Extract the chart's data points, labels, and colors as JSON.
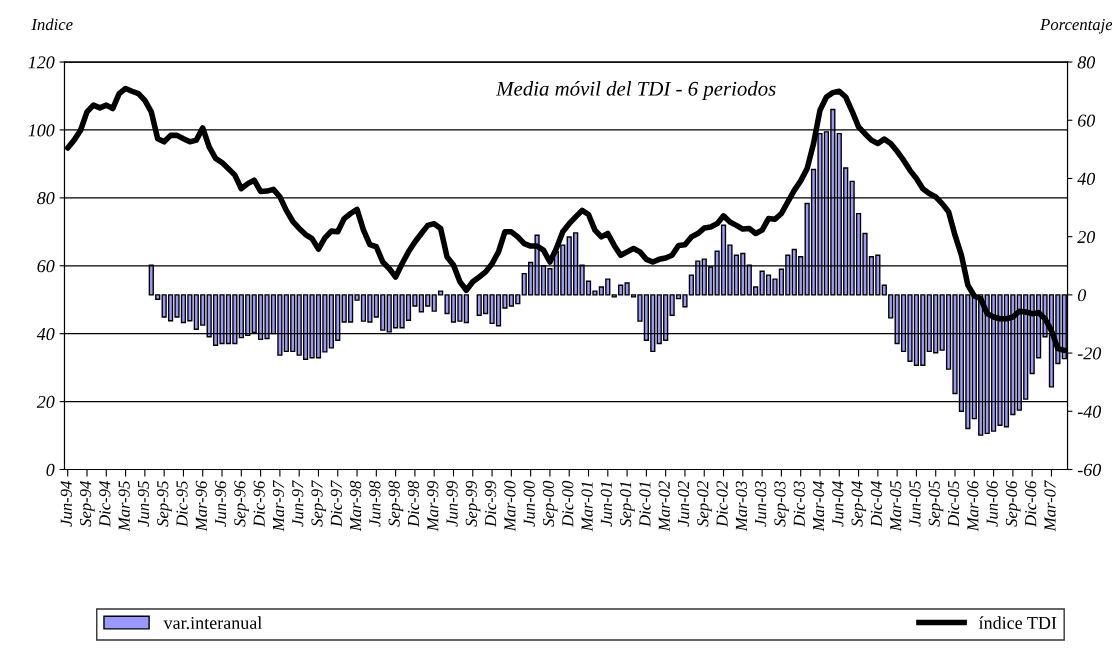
{
  "chart_data": {
    "type": "bar",
    "ylabel": "Indice",
    "y2label": "Porcentaje",
    "annotations": [
      "Media móvil del TDI - 6 periodos"
    ],
    "categories": [
      "Jun-94",
      null,
      null,
      "Sep-94",
      null,
      null,
      "Dic-94",
      null,
      null,
      "Mar-95",
      null,
      null,
      "Jun-95",
      null,
      null,
      "Sep-95",
      null,
      null,
      "Dic-95",
      null,
      null,
      "Mar-96",
      null,
      null,
      "Jun-96",
      null,
      null,
      "Sep-96",
      null,
      null,
      "Dic-96",
      null,
      null,
      "Mar-97",
      null,
      null,
      "Jun-97",
      null,
      null,
      "Sep-97",
      null,
      null,
      "Dic-97",
      null,
      null,
      "Mar-98",
      null,
      null,
      "Jun-98",
      null,
      null,
      "Sep-98",
      null,
      null,
      "Dic-98",
      null,
      null,
      "Mar-99",
      null,
      null,
      "Jun-99",
      null,
      null,
      "Sep-99",
      null,
      null,
      "Dic-99",
      null,
      null,
      "Mar-00",
      null,
      null,
      "Jun-00",
      null,
      null,
      "Sep-00",
      null,
      null,
      "Dic-00",
      null,
      null,
      "Mar-01",
      null,
      null,
      "Jun-01",
      null,
      null,
      "Sep-01",
      null,
      null,
      "Dic-01",
      null,
      null,
      "Mar-02",
      null,
      null,
      "Jun-02",
      null,
      null,
      "Sep-02",
      null,
      null,
      "Dic-02",
      null,
      null,
      "Mar-03",
      null,
      null,
      "Jun-03",
      null,
      null,
      "Sep-03",
      null,
      null,
      "Dic-03",
      null,
      null,
      "Mar-04",
      null,
      null,
      "Jun-04",
      null,
      null,
      "Sep-04",
      null,
      null,
      "Dic-04",
      null,
      null,
      "Mar-05",
      null,
      null,
      "Jun-05",
      null,
      null,
      "Sep-05",
      null,
      null,
      "Dic-05",
      null,
      null,
      "Mar-06",
      null,
      null,
      "Jun-06",
      null,
      null,
      "Sep-06",
      null,
      null,
      "Dic-06",
      null,
      null,
      "Mar-07",
      null,
      null
    ],
    "series": [
      {
        "name": "var.interanual",
        "axis": "y2",
        "color": "#9999ff",
        "values": [
          null,
          null,
          null,
          null,
          null,
          null,
          null,
          null,
          null,
          null,
          null,
          null,
          null,
          10.2,
          -1.5,
          -7.6,
          -8.9,
          -7.6,
          -9.5,
          -8.9,
          -11.8,
          -10.4,
          -14.4,
          -17.3,
          -16.7,
          -16.7,
          -16.7,
          -14.7,
          -13.9,
          -12.9,
          -15.3,
          -15.0,
          -13.3,
          -20.7,
          -19.4,
          -19.4,
          -20.7,
          -22.1,
          -21.6,
          -21.6,
          -19.6,
          -18.2,
          -15.6,
          -9.3,
          -9.3,
          -1.8,
          -9.0,
          -9.3,
          -7.6,
          -12.1,
          -12.7,
          -11.3,
          -11.3,
          -8.7,
          -3.8,
          -5.8,
          -3.8,
          -5.6,
          1.3,
          -6.4,
          -9.3,
          -9.0,
          -9.5,
          null,
          -7.0,
          -6.4,
          -9.8,
          -10.6,
          -4.5,
          -3.8,
          -3.0,
          7.3,
          11.1,
          20.5,
          10.0,
          9.0,
          14.8,
          17.1,
          19.9,
          21.3,
          10.2,
          4.7,
          1.3,
          2.7,
          5.4,
          -0.7,
          3.3,
          4.1,
          -0.7,
          -9.0,
          -15.6,
          -19.4,
          -16.7,
          -15.6,
          -7.0,
          -1.3,
          -4.1,
          6.8,
          11.6,
          12.3,
          9.6,
          15.0,
          23.9,
          17.1,
          13.6,
          14.2,
          10.2,
          2.7,
          8.1,
          6.8,
          5.4,
          8.8,
          13.6,
          15.6,
          13.1,
          31.4,
          43.1,
          55.4,
          56.0,
          63.7,
          55.4,
          43.6,
          39.0,
          27.9,
          21.1,
          13.1,
          13.6,
          3.3,
          -7.9,
          -16.7,
          -19.4,
          -22.8,
          -24.2,
          -24.2,
          -19.4,
          -19.9,
          -19.0,
          -25.5,
          -33.9,
          -40.0,
          -45.9,
          -42.5,
          -48.2,
          -47.6,
          -46.8,
          -44.8,
          -45.3,
          -41.1,
          -39.6,
          -35.8,
          -27.0,
          -21.6,
          -14.4,
          -31.6,
          -23.6,
          -21.9
        ]
      },
      {
        "name": "índice TDI",
        "type": "line",
        "axis": "y",
        "color": "#000000",
        "values": [
          94.7,
          97.0,
          99.9,
          105.3,
          107.3,
          106.5,
          107.3,
          106.3,
          110.7,
          112.2,
          111.4,
          110.7,
          108.7,
          105.3,
          97.4,
          96.5,
          98.4,
          98.4,
          97.4,
          96.5,
          97.0,
          100.6,
          95.0,
          91.6,
          90.4,
          88.6,
          86.7,
          82.7,
          84.2,
          85.2,
          81.9,
          82.0,
          82.5,
          80.3,
          76.3,
          73.1,
          71.0,
          69.2,
          68.0,
          64.9,
          68.2,
          70.2,
          70.0,
          73.9,
          75.4,
          76.6,
          70.5,
          66.2,
          65.6,
          61.1,
          59.2,
          56.7,
          60.6,
          64.1,
          67.0,
          69.5,
          71.9,
          72.4,
          71.0,
          62.6,
          60.2,
          55.3,
          52.8,
          55.3,
          56.7,
          58.2,
          60.6,
          64.1,
          70.0,
          70.0,
          68.5,
          66.5,
          65.8,
          65.8,
          64.6,
          61.1,
          65.1,
          70.0,
          72.4,
          74.4,
          76.3,
          75.1,
          70.5,
          68.5,
          69.5,
          66.0,
          63.1,
          64.1,
          65.1,
          64.1,
          61.9,
          61.1,
          61.9,
          62.3,
          63.1,
          66.0,
          66.2,
          68.5,
          69.5,
          71.1,
          71.4,
          72.4,
          74.7,
          72.9,
          71.9,
          70.8,
          71.0,
          69.5,
          70.5,
          73.9,
          73.7,
          75.4,
          78.8,
          82.2,
          85.0,
          88.6,
          96.0,
          105.8,
          109.7,
          111.0,
          111.4,
          109.7,
          105.5,
          100.9,
          98.9,
          97.0,
          96.0,
          97.3,
          96.0,
          93.7,
          91.1,
          88.1,
          85.7,
          82.7,
          81.3,
          80.3,
          78.3,
          75.9,
          69.0,
          63.1,
          54.3,
          51.1,
          50.3,
          45.9,
          44.9,
          44.4,
          44.4,
          44.9,
          46.6,
          46.4,
          45.9,
          46.2,
          44.4,
          40.9,
          35.6,
          35.1
        ]
      }
    ],
    "ylim": [
      0,
      120
    ],
    "yticks": [
      0,
      20,
      40,
      60,
      80,
      100,
      120
    ],
    "y2lim": [
      -60,
      80
    ],
    "y2ticks": [
      -60,
      -40,
      -20,
      0,
      20,
      40,
      60,
      80
    ],
    "grid": "y",
    "legend": "bottom"
  }
}
